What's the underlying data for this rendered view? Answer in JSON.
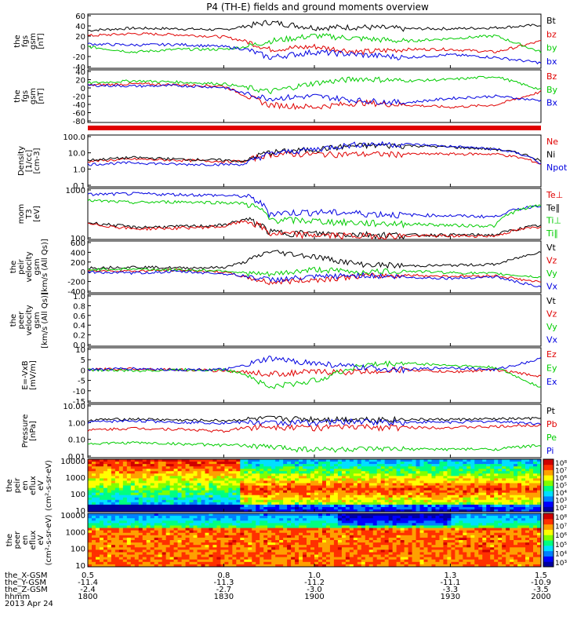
{
  "title": "P4 (TH-E) fields and ground moments overview",
  "colors": {
    "black": "#000000",
    "red": "#e00000",
    "green": "#00cc00",
    "blue": "#0000e0"
  },
  "panels": [
    {
      "id": "fgs_gsm",
      "ylabel": [
        "the",
        "fgs",
        "gsm",
        "[nT]"
      ],
      "ylim": [
        -40,
        60
      ],
      "ticks": [
        "60",
        "40",
        "20",
        "0",
        "-20",
        "-40"
      ],
      "legend": [
        {
          "text": "Bt",
          "color": "black"
        },
        {
          "text": "bz",
          "color": "red"
        },
        {
          "text": "by",
          "color": "green"
        },
        {
          "text": "bx",
          "color": "blue"
        }
      ],
      "series": [
        {
          "color": "black",
          "x": [
            0.5,
            0.6,
            0.7,
            0.8,
            0.85,
            0.9,
            1.0,
            1.1,
            1.2,
            1.3,
            1.4,
            1.5
          ],
          "y": [
            30,
            34,
            33,
            31,
            38,
            45,
            35,
            36,
            33,
            33,
            35,
            40
          ]
        },
        {
          "color": "red",
          "x": [
            0.5,
            0.6,
            0.7,
            0.8,
            0.85,
            0.9,
            1.0,
            1.1,
            1.2,
            1.3,
            1.4,
            1.5
          ],
          "y": [
            20,
            24,
            22,
            18,
            10,
            -5,
            0,
            -10,
            -5,
            -5,
            -10,
            10
          ]
        },
        {
          "color": "green",
          "x": [
            0.5,
            0.6,
            0.7,
            0.8,
            0.85,
            0.9,
            1.0,
            1.1,
            1.2,
            1.3,
            1.4,
            1.5
          ],
          "y": [
            0,
            -10,
            -5,
            -5,
            0,
            10,
            20,
            15,
            10,
            15,
            20,
            -10
          ]
        },
        {
          "color": "blue",
          "x": [
            0.5,
            0.6,
            0.7,
            0.8,
            0.85,
            0.9,
            1.0,
            1.1,
            1.2,
            1.3,
            1.4,
            1.5
          ],
          "y": [
            5,
            3,
            4,
            0,
            -5,
            -20,
            -10,
            -15,
            -20,
            -15,
            -20,
            -30
          ]
        }
      ]
    },
    {
      "id": "fgs_gsm_2",
      "ylabel": [
        "the",
        "fgs",
        "gsm",
        "[nT]"
      ],
      "ylim": [
        -80,
        40
      ],
      "ticks": [
        "40",
        "20",
        "0",
        "-20",
        "-40",
        "-60",
        "-80"
      ],
      "legend": [
        {
          "text": "Bz",
          "color": "red"
        },
        {
          "text": "By",
          "color": "green"
        },
        {
          "text": "Bx",
          "color": "blue"
        }
      ],
      "series": [
        {
          "color": "red",
          "x": [
            0.5,
            0.6,
            0.7,
            0.8,
            0.85,
            0.9,
            1.0,
            1.1,
            1.2,
            1.3,
            1.4,
            1.5
          ],
          "y": [
            5,
            8,
            6,
            3,
            -20,
            -40,
            -45,
            -35,
            -40,
            -45,
            -40,
            -10
          ]
        },
        {
          "color": "green",
          "x": [
            0.5,
            0.6,
            0.7,
            0.8,
            0.85,
            0.9,
            1.0,
            1.1,
            1.2,
            1.3,
            1.4,
            1.5
          ],
          "y": [
            10,
            15,
            12,
            8,
            0,
            -10,
            10,
            20,
            15,
            18,
            25,
            -5
          ]
        },
        {
          "color": "blue",
          "x": [
            0.5,
            0.6,
            0.7,
            0.8,
            0.85,
            0.9,
            1.0,
            1.1,
            1.2,
            1.3,
            1.4,
            1.5
          ],
          "y": [
            5,
            3,
            4,
            0,
            -15,
            -25,
            -20,
            -30,
            -35,
            -25,
            -20,
            -30
          ]
        }
      ]
    },
    {
      "id": "density",
      "ylabel": [
        "Density",
        "[1/cc]",
        "[cm-3]"
      ],
      "log": true,
      "ylim": [
        0.1,
        100
      ],
      "ticks": [
        "100.0",
        "10.0",
        "1.0",
        "0.1"
      ],
      "legend": [
        {
          "text": "Ne",
          "color": "red"
        },
        {
          "text": "Ni",
          "color": "black"
        },
        {
          "text": "Npot",
          "color": "blue"
        }
      ],
      "series": [
        {
          "color": "red",
          "x": [
            0.5,
            0.6,
            0.7,
            0.8,
            0.85,
            0.9,
            1.0,
            1.1,
            1.2,
            1.3,
            1.4,
            1.5
          ],
          "y": [
            3,
            4,
            3.5,
            3,
            3,
            8,
            8,
            8,
            8,
            8,
            8,
            2
          ]
        },
        {
          "color": "black",
          "x": [
            0.5,
            0.6,
            0.7,
            0.8,
            0.85,
            0.9,
            1.0,
            1.1,
            1.2,
            1.3,
            1.4,
            1.5
          ],
          "y": [
            3.5,
            5,
            4,
            3.5,
            3,
            10,
            15,
            25,
            25,
            20,
            15,
            3
          ]
        },
        {
          "color": "blue",
          "x": [
            0.5,
            0.6,
            0.7,
            0.8,
            0.85,
            0.9,
            1.0,
            1.1,
            1.2,
            1.3,
            1.4,
            1.5
          ],
          "y": [
            2,
            2.5,
            2,
            2,
            2,
            8,
            15,
            30,
            30,
            22,
            15,
            2
          ]
        }
      ]
    },
    {
      "id": "mom_t3",
      "ylabel": [
        "mom",
        "T3",
        "[eV]"
      ],
      "log": true,
      "ylim": [
        30,
        10000
      ],
      "ticks": [
        "1000",
        "100"
      ],
      "ticksAt": [
        1000,
        100
      ],
      "tickTop": "10000",
      "legend": [
        {
          "text": "Te⊥",
          "color": "red"
        },
        {
          "text": "Te∥",
          "color": "black"
        },
        {
          "text": "Ti⊥",
          "color": "green"
        },
        {
          "text": "Ti∥",
          "color": "green"
        }
      ],
      "series": [
        {
          "color": "blue",
          "x": [
            0.5,
            0.6,
            0.7,
            0.8,
            0.85,
            0.9,
            1.0,
            1.1,
            1.2,
            1.3,
            1.4,
            1.5
          ],
          "y": [
            5000,
            5500,
            5000,
            4500,
            4000,
            600,
            700,
            600,
            500,
            450,
            400,
            1500
          ]
        },
        {
          "color": "green",
          "x": [
            0.5,
            0.6,
            0.7,
            0.8,
            0.85,
            0.9,
            1.0,
            1.1,
            1.2,
            1.3,
            1.4,
            1.5
          ],
          "y": [
            2500,
            2000,
            2200,
            2000,
            1800,
            300,
            250,
            200,
            180,
            150,
            140,
            1500
          ]
        },
        {
          "color": "black",
          "x": [
            0.5,
            0.6,
            0.7,
            0.8,
            0.85,
            0.9,
            1.0,
            1.1,
            1.2,
            1.3,
            1.4,
            1.5
          ],
          "y": [
            200,
            120,
            130,
            150,
            300,
            70,
            60,
            55,
            50,
            50,
            50,
            150
          ]
        },
        {
          "color": "red",
          "x": [
            0.5,
            0.6,
            0.7,
            0.8,
            0.85,
            0.9,
            1.0,
            1.1,
            1.2,
            1.3,
            1.4,
            1.5
          ],
          "y": [
            170,
            100,
            110,
            130,
            250,
            60,
            50,
            45,
            45,
            45,
            45,
            130
          ]
        }
      ]
    },
    {
      "id": "velocity_1",
      "ylabel": [
        "the",
        "peir",
        "velocity",
        "gsm",
        "[km/s (All Qs)]"
      ],
      "ylim": [
        -400,
        600
      ],
      "ticks": [
        "600",
        "400",
        "200",
        "0",
        "-200",
        "-400"
      ],
      "legend": [
        {
          "text": "Vt",
          "color": "black"
        },
        {
          "text": "Vz",
          "color": "red"
        },
        {
          "text": "Vy",
          "color": "green"
        },
        {
          "text": "Vx",
          "color": "blue"
        }
      ],
      "series": [
        {
          "color": "black",
          "x": [
            0.5,
            0.6,
            0.7,
            0.8,
            0.85,
            0.9,
            1.0,
            1.1,
            1.2,
            1.3,
            1.4,
            1.5
          ],
          "y": [
            80,
            100,
            80,
            90,
            200,
            400,
            300,
            150,
            120,
            130,
            150,
            400
          ]
        },
        {
          "color": "red",
          "x": [
            0.5,
            0.6,
            0.7,
            0.8,
            0.85,
            0.9,
            1.0,
            1.1,
            1.2,
            1.3,
            1.4,
            1.5
          ],
          "y": [
            30,
            20,
            40,
            0,
            -100,
            -200,
            -150,
            -80,
            -60,
            -80,
            -70,
            -200
          ]
        },
        {
          "color": "green",
          "x": [
            0.5,
            0.6,
            0.7,
            0.8,
            0.85,
            0.9,
            1.0,
            1.1,
            1.2,
            1.3,
            1.4,
            1.5
          ],
          "y": [
            50,
            60,
            40,
            30,
            -20,
            -50,
            50,
            0,
            20,
            -10,
            -30,
            -100
          ]
        },
        {
          "color": "blue",
          "x": [
            0.5,
            0.6,
            0.7,
            0.8,
            0.85,
            0.9,
            1.0,
            1.1,
            1.2,
            1.3,
            1.4,
            1.5
          ],
          "y": [
            0,
            -20,
            10,
            -30,
            -80,
            -150,
            -100,
            -60,
            -100,
            -120,
            -90,
            -300
          ]
        }
      ]
    },
    {
      "id": "velocity_2",
      "ylabel": [
        "the",
        "peer",
        "velocity",
        "gsm",
        "[km/s (All Qs)]"
      ],
      "ylim": [
        0,
        1
      ],
      "ticks": [
        "1.0",
        "0.8",
        "0.6",
        "0.4",
        "0.2",
        "0.0"
      ],
      "legend": [
        {
          "text": "Vt",
          "color": "black"
        },
        {
          "text": "Vz",
          "color": "red"
        },
        {
          "text": "Vy",
          "color": "green"
        },
        {
          "text": "Vx",
          "color": "blue"
        }
      ],
      "series": []
    },
    {
      "id": "efield",
      "ylabel": [
        "E=-VxB",
        "[mV/m]"
      ],
      "ylim": [
        -15,
        10
      ],
      "ticks": [
        "10",
        "5",
        "0",
        "-5",
        "-10",
        "-15"
      ],
      "legend": [
        {
          "text": "Ez",
          "color": "red"
        },
        {
          "text": "Ey",
          "color": "green"
        },
        {
          "text": "Ex",
          "color": "blue"
        }
      ],
      "series": [
        {
          "color": "red",
          "x": [
            0.5,
            0.6,
            0.7,
            0.8,
            0.85,
            0.9,
            1.0,
            1.1,
            1.2,
            1.3,
            1.4,
            1.5
          ],
          "y": [
            0,
            0.5,
            0,
            -0.5,
            -1,
            -2,
            -1,
            -1,
            0,
            -1,
            0,
            -3
          ]
        },
        {
          "color": "green",
          "x": [
            0.5,
            0.6,
            0.7,
            0.8,
            0.85,
            0.9,
            1.0,
            1.1,
            1.2,
            1.3,
            1.4,
            1.5
          ],
          "y": [
            0,
            -0.5,
            0,
            0,
            -2,
            -8,
            -5,
            2,
            3,
            2,
            1,
            -8
          ]
        },
        {
          "color": "blue",
          "x": [
            0.5,
            0.6,
            0.7,
            0.8,
            0.85,
            0.9,
            1.0,
            1.1,
            1.2,
            1.3,
            1.4,
            1.5
          ],
          "y": [
            0,
            0.5,
            0,
            0,
            2,
            5,
            3,
            1,
            0,
            1,
            0,
            5
          ]
        }
      ]
    },
    {
      "id": "pressure",
      "ylabel": [
        "Pressure",
        "[nPa]"
      ],
      "log": true,
      "ylim": [
        0.01,
        10
      ],
      "ticks": [
        "10.00",
        "1.00",
        "0.10",
        "0.01"
      ],
      "legend": [
        {
          "text": "Pt",
          "color": "black"
        },
        {
          "text": "Pb",
          "color": "red"
        },
        {
          "text": "Pe",
          "color": "green"
        },
        {
          "text": "Pi",
          "color": "blue"
        }
      ],
      "series": [
        {
          "color": "black",
          "x": [
            0.5,
            0.6,
            0.7,
            0.8,
            0.85,
            0.9,
            1.0,
            1.1,
            1.2,
            1.3,
            1.4,
            1.5
          ],
          "y": [
            1.3,
            1.5,
            1.3,
            1.2,
            1.4,
            1.6,
            1.5,
            1.5,
            1.4,
            1.4,
            1.5,
            1.6
          ]
        },
        {
          "color": "blue",
          "x": [
            0.5,
            0.6,
            0.7,
            0.8,
            0.85,
            0.9,
            1.0,
            1.1,
            1.2,
            1.3,
            1.4,
            1.5
          ],
          "y": [
            1.0,
            1.2,
            1.0,
            0.9,
            1.0,
            0.9,
            1.0,
            1.1,
            1.0,
            1.0,
            1.1,
            0.8
          ]
        },
        {
          "color": "red",
          "x": [
            0.5,
            0.6,
            0.7,
            0.8,
            0.85,
            0.9,
            1.0,
            1.1,
            1.2,
            1.3,
            1.4,
            1.5
          ],
          "y": [
            0.35,
            0.45,
            0.4,
            0.3,
            0.5,
            0.6,
            0.5,
            0.55,
            0.5,
            0.5,
            0.55,
            0.7
          ]
        },
        {
          "color": "green",
          "x": [
            0.5,
            0.6,
            0.7,
            0.8,
            0.85,
            0.9,
            1.0,
            1.1,
            1.2,
            1.3,
            1.4,
            1.5
          ],
          "y": [
            0.06,
            0.07,
            0.06,
            0.05,
            0.05,
            0.04,
            0.03,
            0.03,
            0.03,
            0.03,
            0.03,
            0.05
          ]
        }
      ]
    },
    {
      "id": "peir_flux",
      "type": "spectrogram",
      "ylabel": [
        "the",
        "peir",
        "en",
        "eflux",
        "eV",
        "(cm²-s-sr-eV)"
      ],
      "ticks": [
        "10000",
        "1000",
        "100",
        "10"
      ],
      "colorbar_ticks": [
        "10⁸",
        "10⁷",
        "10⁶",
        "10⁵",
        "10⁴",
        "10³",
        "10²"
      ]
    },
    {
      "id": "peer_flux",
      "type": "spectrogram",
      "ylabel": [
        "the",
        "peer",
        "en",
        "eflux",
        "eV",
        "(cm²-s-sr-eV)"
      ],
      "ticks": [
        "10000",
        "1000",
        "100",
        "10"
      ],
      "colorbar_ticks": [
        "10⁸",
        "10⁷",
        "10⁶",
        "10⁵",
        "10⁴",
        "10³"
      ]
    }
  ],
  "xaxis": {
    "rows": [
      {
        "label": "the_X-GSM",
        "values": [
          "0.5",
          "0.8",
          "1.0",
          "1.3",
          "1.5"
        ]
      },
      {
        "label": "the_Y-GSM",
        "values": [
          "-11.4",
          "-11.3",
          "-11.2",
          "-11.1",
          "-10.9"
        ]
      },
      {
        "label": "the_Z-GSM",
        "values": [
          "-2.4",
          "-2.7",
          "-3.0",
          "-3.3",
          "-3.5"
        ]
      },
      {
        "label": "hhmm",
        "values": [
          "1800",
          "1830",
          "1900",
          "1930",
          "2000"
        ]
      }
    ],
    "date": "2013 Apr 24"
  },
  "chart_data": {
    "type": "line",
    "title": "P4 (TH-E) fields and ground moments overview",
    "x_time_labels": [
      "1800",
      "1830",
      "1900",
      "1930",
      "2000"
    ],
    "note_panels": "Nine stacked time-series panels plus two energy-flux spectrograms; series values listed per panel."
  }
}
